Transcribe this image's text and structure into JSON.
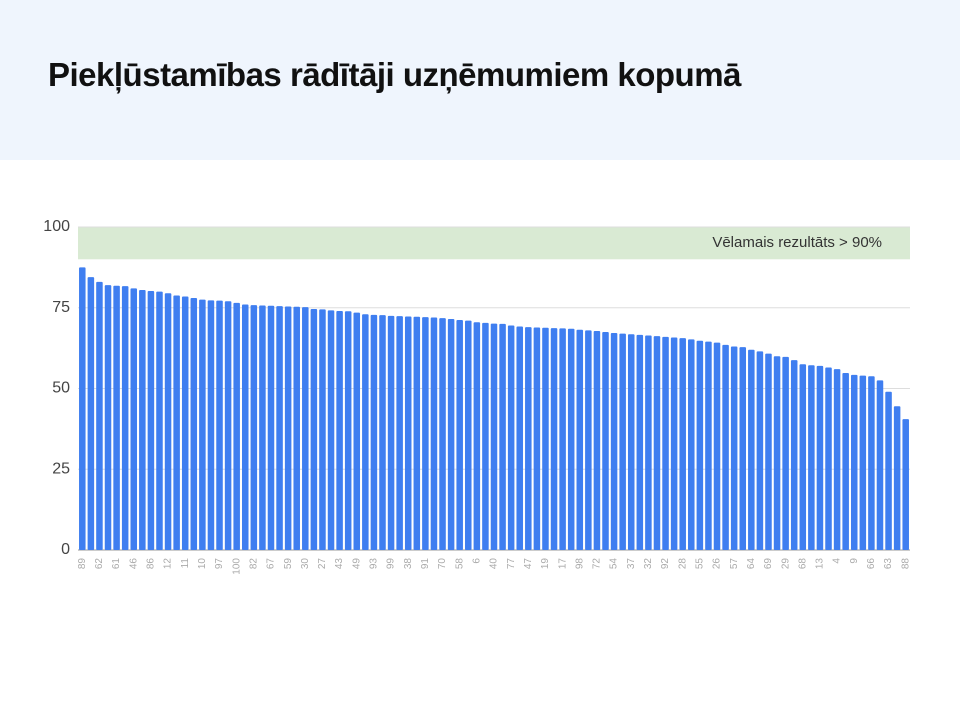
{
  "chart_data": {
    "type": "bar",
    "title": "Piekļūstamības rādītāji uzņēmumiem kopumā",
    "categories": [
      "89",
      null,
      "62",
      null,
      "61",
      null,
      "46",
      null,
      "86",
      null,
      "12",
      null,
      "11",
      null,
      "10",
      null,
      "97",
      null,
      "100",
      null,
      "82",
      null,
      "67",
      null,
      "59",
      null,
      "30",
      null,
      "27",
      null,
      "43",
      null,
      "49",
      null,
      "93",
      null,
      "99",
      null,
      "38",
      null,
      "91",
      null,
      "70",
      null,
      "58",
      null,
      "6",
      null,
      "40",
      null,
      "77",
      null,
      "47",
      null,
      "19",
      null,
      "17",
      null,
      "98",
      null,
      "72",
      null,
      "54",
      null,
      "37",
      null,
      "32",
      null,
      "92",
      null,
      "28",
      null,
      "55",
      null,
      "26",
      null,
      "57",
      null,
      "64",
      null,
      "69",
      null,
      "29",
      null,
      "68",
      null,
      "13",
      null,
      "4",
      null,
      "9",
      null,
      "66",
      null,
      "63",
      null,
      "88"
    ],
    "values": [
      87.5,
      84.5,
      83,
      82,
      81.8,
      81.7,
      81,
      80.5,
      80.2,
      80,
      79.5,
      78.8,
      78.5,
      78,
      77.5,
      77.3,
      77.2,
      77,
      76.5,
      76,
      75.8,
      75.7,
      75.6,
      75.5,
      75.4,
      75.3,
      75.2,
      74.6,
      74.5,
      74.2,
      74,
      73.9,
      73.5,
      73,
      72.8,
      72.7,
      72.5,
      72.4,
      72.3,
      72.2,
      72.1,
      72,
      71.8,
      71.5,
      71.2,
      71,
      70.5,
      70.3,
      70.1,
      70,
      69.5,
      69.2,
      69,
      68.9,
      68.8,
      68.7,
      68.6,
      68.5,
      68.2,
      68,
      67.8,
      67.5,
      67.2,
      67,
      66.8,
      66.6,
      66.4,
      66.2,
      66,
      65.8,
      65.6,
      65.2,
      64.8,
      64.5,
      64.2,
      63.5,
      63,
      62.8,
      62,
      61.5,
      60.8,
      60,
      59.8,
      58.8,
      57.5,
      57.2,
      57,
      56.5,
      56,
      54.8,
      54.2,
      54,
      53.8,
      52.5,
      49,
      44.5,
      40.5
    ],
    "color": "#3f7ef0",
    "ylim": [
      0,
      100
    ],
    "yticks": [
      0,
      25,
      50,
      75,
      100
    ],
    "grid": true,
    "target_band": {
      "from": 90,
      "to": 100,
      "color": "#d9ead3",
      "label": "Vēlamais rezultāts > 90%"
    }
  }
}
